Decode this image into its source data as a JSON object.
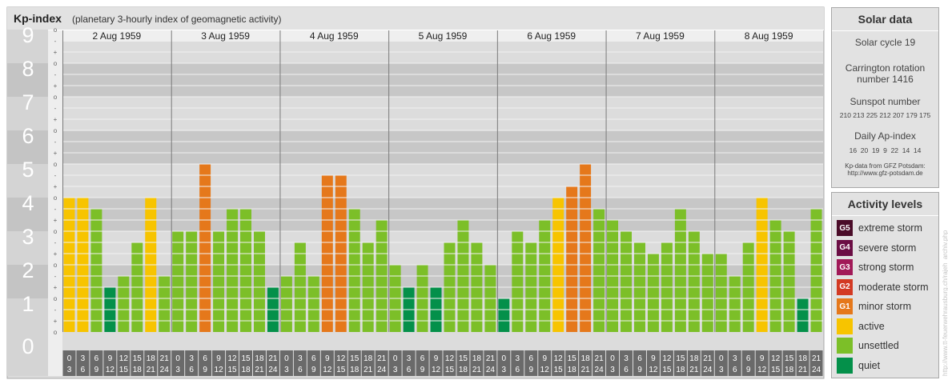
{
  "header": {
    "title": "Kp-index",
    "subtitle": "(planetary 3-hourly index of geomagnetic activity)"
  },
  "chart_data": {
    "type": "bar",
    "y_labels": [
      "0",
      "1",
      "2",
      "3",
      "4",
      "5",
      "6",
      "7",
      "8",
      "9"
    ],
    "y_sub_marks": [
      "+",
      "o",
      "-"
    ],
    "ylim": [
      0,
      9.33
    ],
    "days": [
      "2 Aug 1959",
      "3 Aug 1959",
      "4 Aug 1959",
      "5 Aug 1959",
      "6 Aug 1959",
      "7 Aug 1959",
      "8 Aug 1959"
    ],
    "interval_starts": [
      "0",
      "3",
      "6",
      "9",
      "12",
      "15",
      "18",
      "21"
    ],
    "interval_ends": [
      "3",
      "6",
      "9",
      "12",
      "15",
      "18",
      "21",
      "24"
    ],
    "values": [
      4.0,
      4.0,
      3.667,
      1.333,
      1.667,
      2.667,
      4.0,
      1.667,
      3.0,
      3.0,
      5.0,
      3.0,
      3.667,
      3.667,
      3.0,
      1.333,
      1.667,
      2.667,
      1.667,
      4.667,
      4.667,
      3.667,
      2.667,
      3.333,
      2.0,
      1.333,
      2.0,
      1.333,
      2.667,
      3.333,
      2.667,
      2.0,
      1.0,
      3.0,
      2.667,
      3.333,
      4.0,
      4.333,
      5.0,
      3.667,
      3.333,
      3.0,
      2.667,
      2.333,
      2.667,
      3.667,
      3.0,
      2.333,
      2.333,
      1.667,
      2.667,
      4.0,
      3.333,
      3.0,
      1.0,
      3.667
    ]
  },
  "solar": {
    "title": "Solar data",
    "cycle": "Solar cycle 19",
    "carrington_1": "Carrington rotation",
    "carrington_2": "number 1416",
    "sunspot_label": "Sunspot number",
    "sunspot_values": "210 213 225 212 207 179 175",
    "ap_label": "Daily Ap-index",
    "ap_values": "16  20  19  9  22  14  14",
    "source_1": "Kp-data from GFZ Potsdam:",
    "source_2": "http://www.gfz-potsdam.de"
  },
  "levels": {
    "title": "Activity levels",
    "items": [
      {
        "badge": "G5",
        "label": "extreme storm",
        "color": "#4a0c28"
      },
      {
        "badge": "G4",
        "label": "severe storm",
        "color": "#6b0e44"
      },
      {
        "badge": "G3",
        "label": "strong storm",
        "color": "#a11a58"
      },
      {
        "badge": "G2",
        "label": "moderate storm",
        "color": "#d33a23"
      },
      {
        "badge": "G1",
        "label": "minor storm",
        "color": "#e5781b"
      },
      {
        "badge": "",
        "label": "active",
        "color": "#f7c400"
      },
      {
        "badge": "",
        "label": "unsettled",
        "color": "#7cbf28"
      },
      {
        "badge": "",
        "label": "quiet",
        "color": "#04904a"
      }
    ]
  },
  "watermark": "http://www.tt-feuerwehrausburg.ch/rajeh_archiv.php"
}
